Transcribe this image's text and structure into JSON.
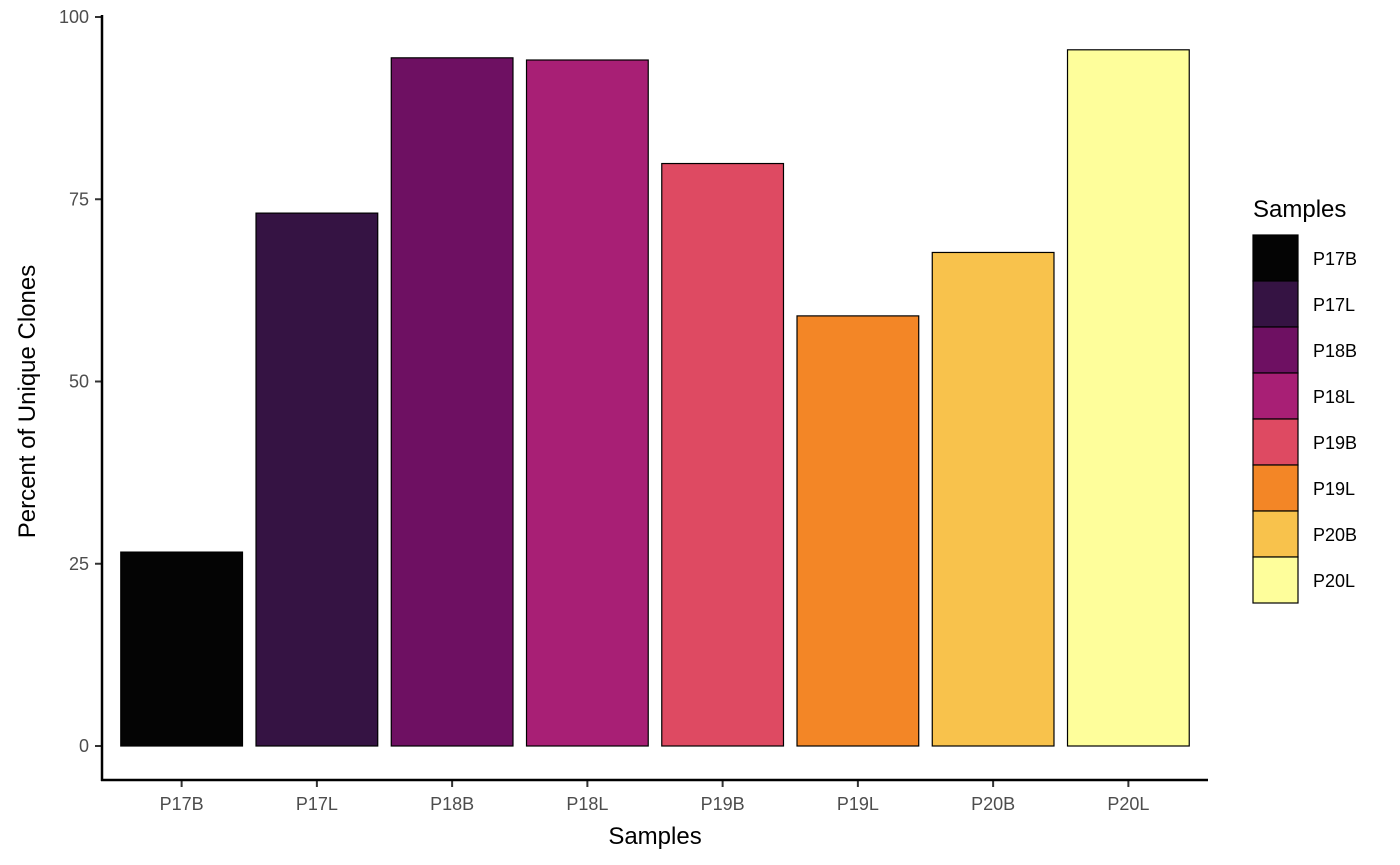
{
  "chart_data": {
    "type": "bar",
    "title": "",
    "xlabel": "Samples",
    "ylabel": "Percent of Unique Clones",
    "categories": [
      "P17B",
      "P17L",
      "P18B",
      "P18L",
      "P19B",
      "P19L",
      "P20B",
      "P20L"
    ],
    "values": [
      26.6,
      73.1,
      94.4,
      94.1,
      79.9,
      59.0,
      67.7,
      95.5
    ],
    "colors": [
      "#040404",
      "#351343",
      "#6E1062",
      "#A81F75",
      "#DE4A62",
      "#F38626",
      "#F8C24C",
      "#FEFE9B"
    ],
    "ylim": [
      0,
      100
    ],
    "yticks": [
      0,
      25,
      50,
      75,
      100
    ],
    "grid": false,
    "legend": {
      "title": "Samples",
      "position": "right",
      "entries": [
        "P17B",
        "P17L",
        "P18B",
        "P18L",
        "P19B",
        "P19L",
        "P20B",
        "P20L"
      ]
    }
  }
}
